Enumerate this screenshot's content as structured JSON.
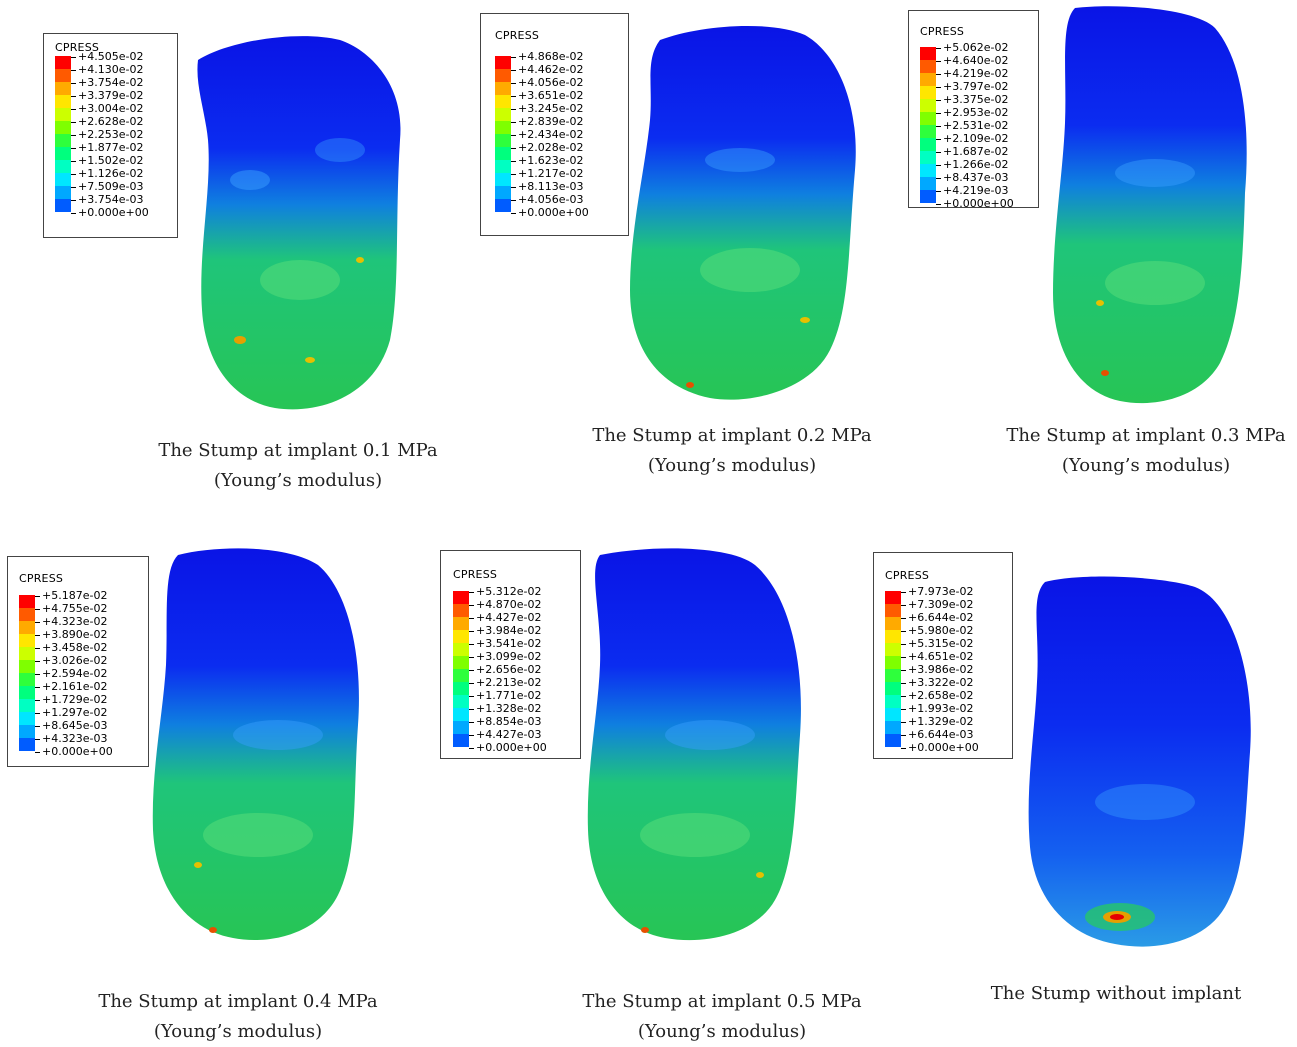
{
  "legend_title": "CPRESS",
  "palette": [
    "#ff0000",
    "#ff5a00",
    "#ffaa00",
    "#ffe600",
    "#ccff00",
    "#7fff00",
    "#2eff3c",
    "#00ff7e",
    "#00ffc2",
    "#00e6ff",
    "#00a8ff",
    "#005cff",
    "#0000ff"
  ],
  "panels": [
    {
      "id": "p01",
      "ticks": [
        "+4.505e-02",
        "+4.130e-02",
        "+3.754e-02",
        "+3.379e-02",
        "+3.004e-02",
        "+2.628e-02",
        "+2.253e-02",
        "+1.877e-02",
        "+1.502e-02",
        "+1.126e-02",
        "+7.509e-03",
        "+3.754e-03",
        "+0.000e+00"
      ],
      "caption_line1": "The Stump at implant 0.1 MPa",
      "caption_line2": "(Young’s modulus)"
    },
    {
      "id": "p02",
      "ticks": [
        "+4.868e-02",
        "+4.462e-02",
        "+4.056e-02",
        "+3.651e-02",
        "+3.245e-02",
        "+2.839e-02",
        "+2.434e-02",
        "+2.028e-02",
        "+1.623e-02",
        "+1.217e-02",
        "+8.113e-03",
        "+4.056e-03",
        "+0.000e+00"
      ],
      "caption_line1": "The Stump at implant 0.2 MPa",
      "caption_line2": "(Young’s modulus)"
    },
    {
      "id": "p03",
      "ticks": [
        "+5.062e-02",
        "+4.640e-02",
        "+4.219e-02",
        "+3.797e-02",
        "+3.375e-02",
        "+2.953e-02",
        "+2.531e-02",
        "+2.109e-02",
        "+1.687e-02",
        "+1.266e-02",
        "+8.437e-03",
        "+4.219e-03",
        "+0.000e+00"
      ],
      "caption_line1": "The Stump at implant 0.3 MPa",
      "caption_line2": "(Young’s modulus)"
    },
    {
      "id": "p04",
      "ticks": [
        "+5.187e-02",
        "+4.755e-02",
        "+4.323e-02",
        "+3.890e-02",
        "+3.458e-02",
        "+3.026e-02",
        "+2.594e-02",
        "+2.161e-02",
        "+1.729e-02",
        "+1.297e-02",
        "+8.645e-03",
        "+4.323e-03",
        "+0.000e+00"
      ],
      "caption_line1": "The Stump at implant 0.4 MPa",
      "caption_line2": "(Young’s modulus)"
    },
    {
      "id": "p05",
      "ticks": [
        "+5.312e-02",
        "+4.870e-02",
        "+4.427e-02",
        "+3.984e-02",
        "+3.541e-02",
        "+3.099e-02",
        "+2.656e-02",
        "+2.213e-02",
        "+1.771e-02",
        "+1.328e-02",
        "+8.854e-03",
        "+4.427e-03",
        "+0.000e+00"
      ],
      "caption_line1": "The Stump at implant 0.5 MPa",
      "caption_line2": "(Young’s modulus)"
    },
    {
      "id": "p06",
      "ticks": [
        "+7.973e-02",
        "+7.309e-02",
        "+6.644e-02",
        "+5.980e-02",
        "+5.315e-02",
        "+4.651e-02",
        "+3.986e-02",
        "+3.322e-02",
        "+2.658e-02",
        "+1.993e-02",
        "+1.329e-02",
        "+6.644e-03",
        "+0.000e+00"
      ],
      "caption_line1": "The Stump without implant",
      "caption_line2": ""
    }
  ]
}
